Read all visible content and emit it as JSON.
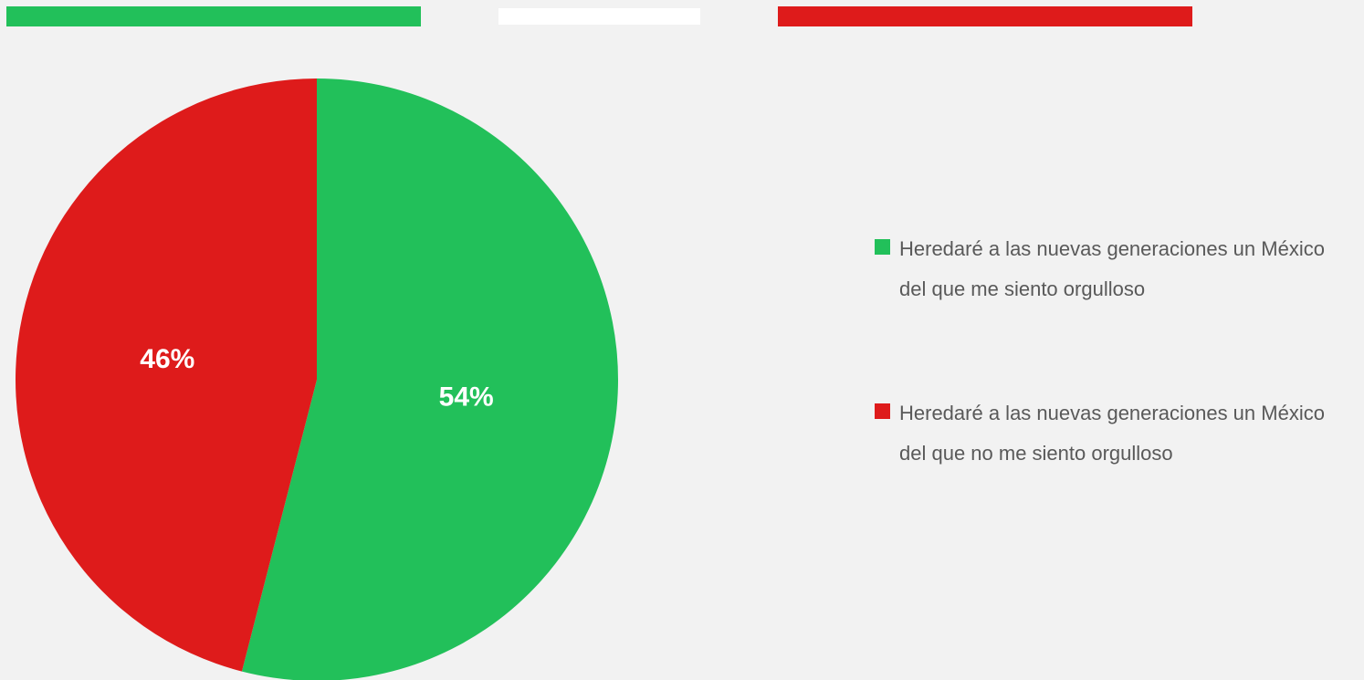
{
  "chart_data": {
    "type": "pie",
    "categories": [
      "Heredaré a las nuevas generaciones un México del que me siento orgulloso",
      "Heredaré a las nuevas generaciones un México del que no me siento orgulloso"
    ],
    "values": [
      54,
      46
    ],
    "value_labels": [
      "54%",
      "46%"
    ],
    "colors": [
      "#22c05a",
      "#de1b1b"
    ]
  }
}
